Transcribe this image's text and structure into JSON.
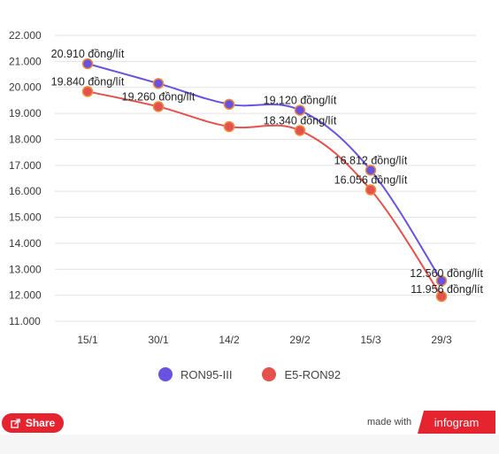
{
  "chart_data": {
    "type": "line",
    "title": "",
    "xlabel": "",
    "ylabel": "",
    "categories": [
      "15/1",
      "30/1",
      "14/2",
      "29/2",
      "15/3",
      "29/3"
    ],
    "y_ticks": [
      "22.000",
      "21.000",
      "20.000",
      "19.000",
      "18.000",
      "17.000",
      "16.000",
      "15.000",
      "14.000",
      "13.000",
      "12.000",
      "11.000"
    ],
    "ylim": [
      11000,
      22000
    ],
    "grid": true,
    "legend_position": "bottom",
    "series": [
      {
        "name": "RON95-III",
        "color": "#6a52e0",
        "values": [
          20910,
          20150,
          19350,
          19120,
          16812,
          12560
        ],
        "labels": [
          "20.910 đồng/lít",
          "",
          "",
          "19.120 đồng/lít",
          "16.812 đồng/lít",
          "12.560 đồng/lít"
        ]
      },
      {
        "name": "E5-RON92",
        "color": "#e3524d",
        "values": [
          19840,
          19260,
          18490,
          18340,
          16056,
          11956
        ],
        "labels": [
          "19.840 đồng/lít",
          "19.260 đồng/lít",
          "",
          "18.340 đồng/lít",
          "16.056 đồng/lít",
          "11.956 đồng/lít"
        ]
      }
    ]
  },
  "legend": {
    "items": [
      {
        "label": "RON95-III",
        "color": "#6a52e0"
      },
      {
        "label": "E5-RON92",
        "color": "#e3524d"
      }
    ]
  },
  "footer": {
    "share_label": "Share",
    "made_with": "made with",
    "brand": "infogram"
  }
}
